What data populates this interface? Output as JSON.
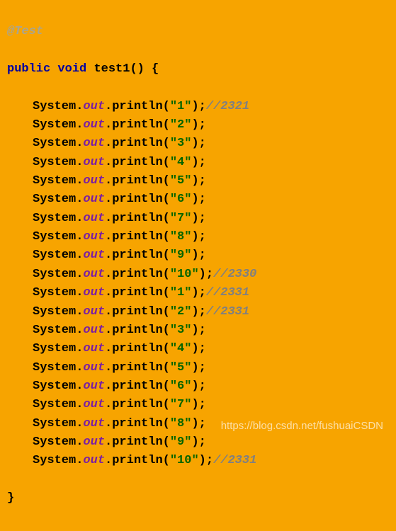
{
  "annotation": "@Test",
  "signature": {
    "public": "public",
    "void": "void",
    "name": "test1",
    "parens_brace": "() {"
  },
  "lines": [
    {
      "arg": "\"1\"",
      "comment": "//2321"
    },
    {
      "arg": "\"2\"",
      "comment": null
    },
    {
      "arg": "\"3\"",
      "comment": null
    },
    {
      "arg": "\"4\"",
      "comment": null
    },
    {
      "arg": "\"5\"",
      "comment": null
    },
    {
      "arg": "\"6\"",
      "comment": null
    },
    {
      "arg": "\"7\"",
      "comment": null
    },
    {
      "arg": "\"8\"",
      "comment": null
    },
    {
      "arg": "\"9\"",
      "comment": null
    },
    {
      "arg": "\"10\"",
      "comment": "//2330"
    },
    {
      "arg": "\"1\"",
      "comment": "//2331"
    },
    {
      "arg": "\"2\"",
      "comment": "//2331"
    },
    {
      "arg": "\"3\"",
      "comment": null
    },
    {
      "arg": "\"4\"",
      "comment": null
    },
    {
      "arg": "\"5\"",
      "comment": null
    },
    {
      "arg": "\"6\"",
      "comment": null
    },
    {
      "arg": "\"7\"",
      "comment": null
    },
    {
      "arg": "\"8\"",
      "comment": null
    },
    {
      "arg": "\"9\"",
      "comment": null
    },
    {
      "arg": "\"10\"",
      "comment": "//2331"
    }
  ],
  "stmt": {
    "system": "System",
    "dot": ".",
    "out": "out",
    "println": "println",
    "open": "(",
    "close": ");"
  },
  "close_brace": "}",
  "watermark": "https://blog.csdn.net/fushuaiCSDN"
}
